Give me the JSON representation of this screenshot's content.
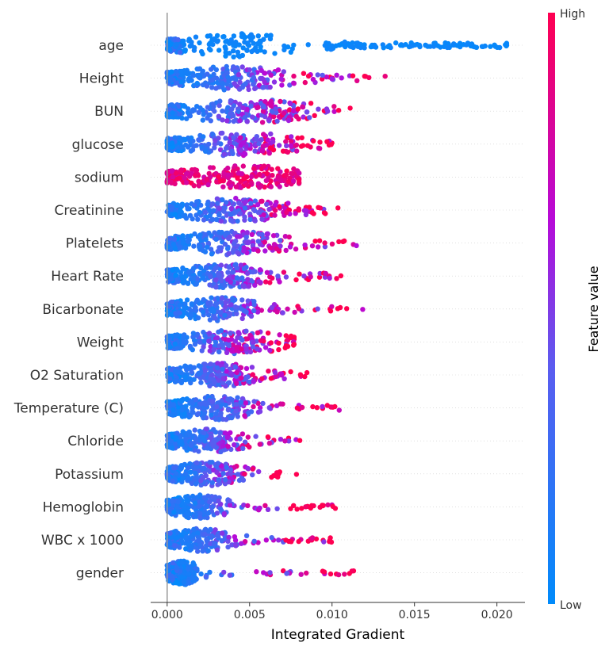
{
  "chart_data": {
    "type": "scatter",
    "subtype": "beeswarm",
    "title": "",
    "xlabel": "Integrated Gradient",
    "ylabel": "",
    "xlim": [
      -0.001,
      0.0217
    ],
    "xticks": [
      "0.000",
      "0.005",
      "0.010",
      "0.015",
      "0.020"
    ],
    "xtick_values": [
      0,
      0.005,
      0.01,
      0.015,
      0.02
    ],
    "grid": false,
    "colorbar": {
      "title": "Feature value",
      "high_label": "High",
      "low_label": "Low",
      "low_color": "#008bfb",
      "high_color": "#ff0051"
    },
    "features": [
      {
        "name": "age",
        "max": 0.0207,
        "peak": 0.0043,
        "hue": "low"
      },
      {
        "name": "Height",
        "max": 0.0134,
        "peak": 0.004,
        "hue": "mixed"
      },
      {
        "name": "BUN",
        "max": 0.0113,
        "peak": 0.005,
        "hue": "mixed"
      },
      {
        "name": "glucose",
        "max": 0.01,
        "peak": 0.0045,
        "hue": "mixed"
      },
      {
        "name": "sodium",
        "max": 0.008,
        "peak": 0.0047,
        "hue": "high"
      },
      {
        "name": "Creatinine",
        "max": 0.0107,
        "peak": 0.004,
        "hue": "mixed"
      },
      {
        "name": "Platelets",
        "max": 0.0115,
        "peak": 0.004,
        "hue": "mixed"
      },
      {
        "name": "Heart Rate",
        "max": 0.0106,
        "peak": 0.0035,
        "hue": "mixed"
      },
      {
        "name": "Bicarbonate",
        "max": 0.012,
        "peak": 0.003,
        "hue": "mixed"
      },
      {
        "name": "Weight",
        "max": 0.0077,
        "peak": 0.004,
        "hue": "mixed"
      },
      {
        "name": "O2 Saturation",
        "max": 0.0091,
        "peak": 0.003,
        "hue": "mixed"
      },
      {
        "name": "Temperature (C)",
        "max": 0.0106,
        "peak": 0.003,
        "hue": "mixed"
      },
      {
        "name": "Chloride",
        "max": 0.0083,
        "peak": 0.0025,
        "hue": "mixed"
      },
      {
        "name": "Potassium",
        "max": 0.0079,
        "peak": 0.0025,
        "hue": "mixed"
      },
      {
        "name": "Hemoglobin",
        "max": 0.0104,
        "peak": 0.002,
        "hue": "mixed"
      },
      {
        "name": "WBC x 1000",
        "max": 0.01,
        "peak": 0.002,
        "hue": "mixed"
      },
      {
        "name": "gender",
        "max": 0.0114,
        "peak": 0.001,
        "hue": "mixed"
      }
    ]
  }
}
